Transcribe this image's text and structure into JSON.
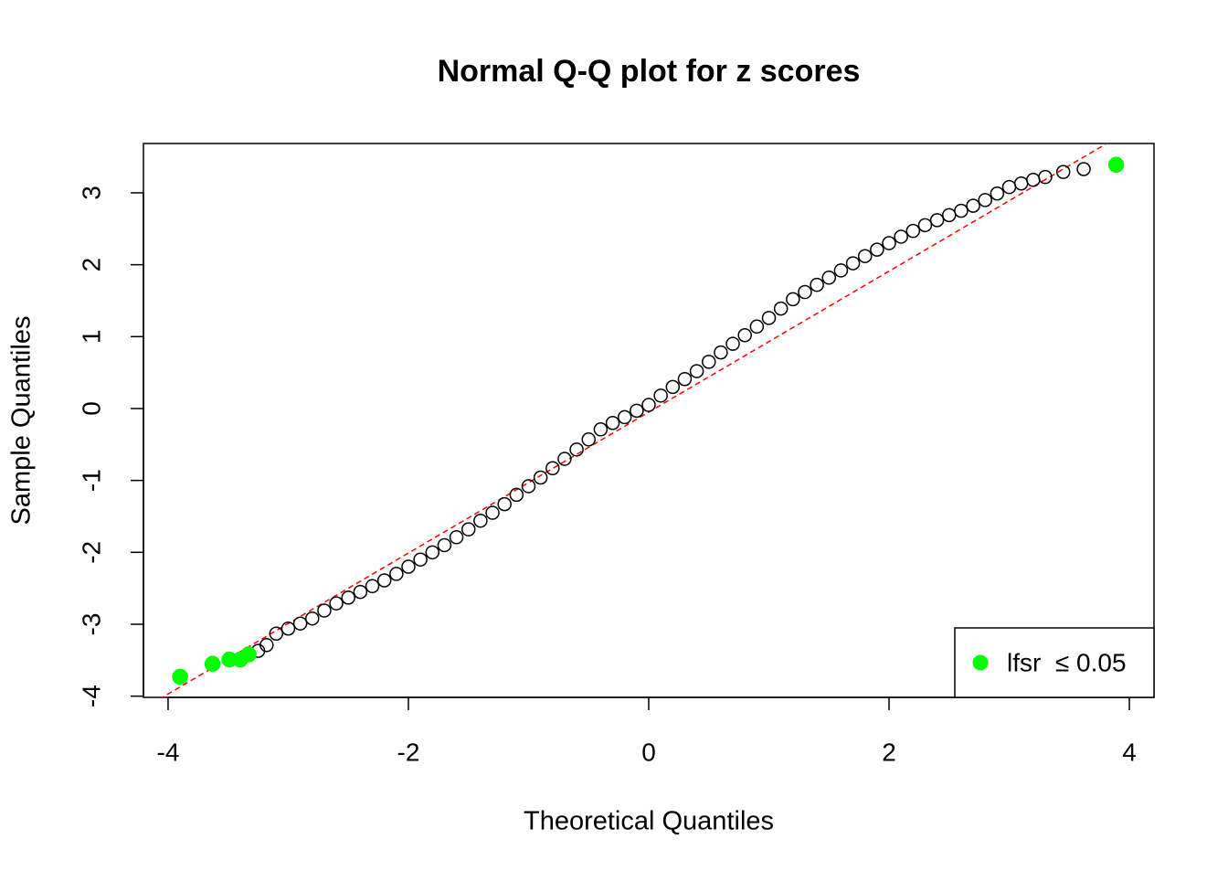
{
  "chart_data": {
    "type": "scatter",
    "title": "Normal Q-Q plot for z scores",
    "x_label": "Theoretical Quantiles",
    "y_label": "Sample Quantiles",
    "xlim": [
      -4.205,
      4.205
    ],
    "ylim": [
      -4.017,
      3.686
    ],
    "xticks": [
      -4,
      -2,
      0,
      2,
      4
    ],
    "yticks": [
      -4,
      -3,
      -2,
      -1,
      0,
      1,
      2,
      3
    ],
    "reference_line": {
      "intercept": -0.05,
      "slope": 0.98,
      "color": "#ff0000"
    },
    "legend_position": "bottom-right",
    "series": [
      {
        "color": "#000000",
        "filled": false,
        "x": [
          -3.25,
          -3.18,
          -3.1,
          -3.0,
          -2.9,
          -2.8,
          -2.7,
          -2.6,
          -2.5,
          -2.4,
          -2.3,
          -2.2,
          -2.1,
          -2.0,
          -1.9,
          -1.8,
          -1.7,
          -1.6,
          -1.5,
          -1.4,
          -1.3,
          -1.2,
          -1.1,
          -1.0,
          -0.9,
          -0.8,
          -0.7,
          -0.6,
          -0.5,
          -0.4,
          -0.3,
          -0.2,
          -0.1,
          0,
          0.1,
          0.2,
          0.3,
          0.4,
          0.5,
          0.6,
          0.7,
          0.8,
          0.9,
          1.0,
          1.1,
          1.2,
          1.3,
          1.4,
          1.5,
          1.6,
          1.7,
          1.8,
          1.9,
          2.0,
          2.1,
          2.2,
          2.3,
          2.4,
          2.5,
          2.6,
          2.7,
          2.8,
          2.9,
          3.0,
          3.1,
          3.2,
          3.3,
          3.45,
          3.62
        ],
        "values": [
          -3.37,
          -3.29,
          -3.13,
          -3.06,
          -2.99,
          -2.92,
          -2.81,
          -2.71,
          -2.63,
          -2.55,
          -2.47,
          -2.39,
          -2.3,
          -2.2,
          -2.1,
          -2.0,
          -1.9,
          -1.79,
          -1.68,
          -1.56,
          -1.45,
          -1.33,
          -1.2,
          -1.08,
          -0.96,
          -0.83,
          -0.7,
          -0.57,
          -0.43,
          -0.29,
          -0.2,
          -0.12,
          -0.03,
          0.05,
          0.18,
          0.3,
          0.41,
          0.52,
          0.65,
          0.78,
          0.9,
          1.02,
          1.14,
          1.26,
          1.39,
          1.52,
          1.62,
          1.72,
          1.82,
          1.92,
          2.02,
          2.12,
          2.21,
          2.3,
          2.39,
          2.47,
          2.55,
          2.62,
          2.69,
          2.75,
          2.82,
          2.9,
          2.99,
          3.08,
          3.13,
          3.18,
          3.22,
          3.29,
          3.33
        ]
      },
      {
        "name": "lfsr  ≤ 0.05",
        "color": "#00ff00",
        "filled": true,
        "x": [
          -3.9,
          -3.63,
          -3.49,
          -3.4,
          -3.33,
          3.89
        ],
        "values": [
          -3.73,
          -3.55,
          -3.49,
          -3.49,
          -3.42,
          3.39
        ]
      }
    ]
  }
}
